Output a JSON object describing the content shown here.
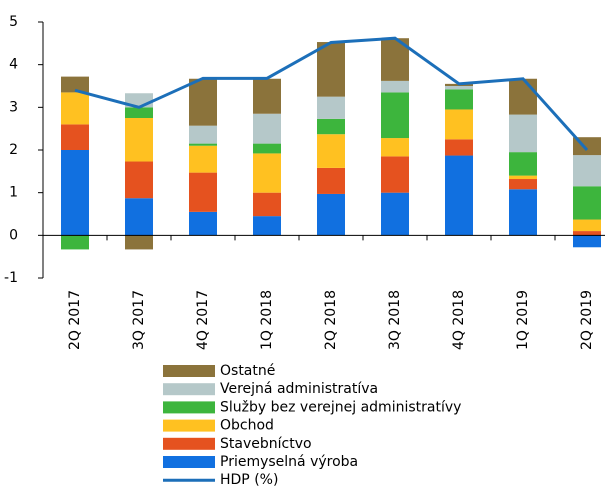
{
  "chart_data": {
    "type": "bar",
    "stacked": true,
    "categories": [
      "2Q 2017",
      "3Q 2017",
      "4Q 2017",
      "1Q 2018",
      "2Q 2018",
      "3Q 2018",
      "4Q 2018",
      "1Q 2019",
      "2Q 2019"
    ],
    "series": [
      {
        "name": "Priemyselná výroba",
        "color": "#1170e0",
        "values": [
          2.0,
          0.87,
          0.55,
          0.45,
          0.97,
          1.0,
          1.87,
          1.08,
          -0.28
        ]
      },
      {
        "name": "Stavebníctvo",
        "color": "#e5521f",
        "values": [
          0.6,
          0.86,
          0.92,
          0.55,
          0.61,
          0.85,
          0.38,
          0.24,
          0.1
        ]
      },
      {
        "name": "Obchod",
        "color": "#ffc121",
        "values": [
          0.75,
          1.02,
          0.63,
          0.92,
          0.79,
          0.43,
          0.7,
          0.08,
          0.27
        ]
      },
      {
        "name": "Služby bez verejnej administratívy",
        "color": "#3db53d",
        "values": [
          -0.33,
          0.25,
          0.05,
          0.23,
          0.36,
          1.07,
          0.47,
          0.55,
          0.78
        ]
      },
      {
        "name": "Verejná administratíva",
        "color": "#b5c8c9",
        "values": [
          0,
          0.33,
          0.42,
          0.7,
          0.52,
          0.27,
          0.08,
          0.88,
          0.73
        ]
      },
      {
        "name": "Ostatné",
        "color": "#8b733b",
        "values": [
          0.37,
          -0.33,
          1.1,
          0.82,
          1.28,
          1.0,
          0.05,
          0.84,
          0.42
        ]
      }
    ],
    "line": {
      "name": "HDP (%)",
      "color": "#1c6fb9",
      "values": [
        3.4,
        3.0,
        3.68,
        3.68,
        4.52,
        4.62,
        3.55,
        3.67,
        2.0
      ]
    },
    "ylim": [
      -1,
      5
    ],
    "yticks": [
      -1,
      0,
      1,
      2,
      3,
      4,
      5
    ]
  }
}
